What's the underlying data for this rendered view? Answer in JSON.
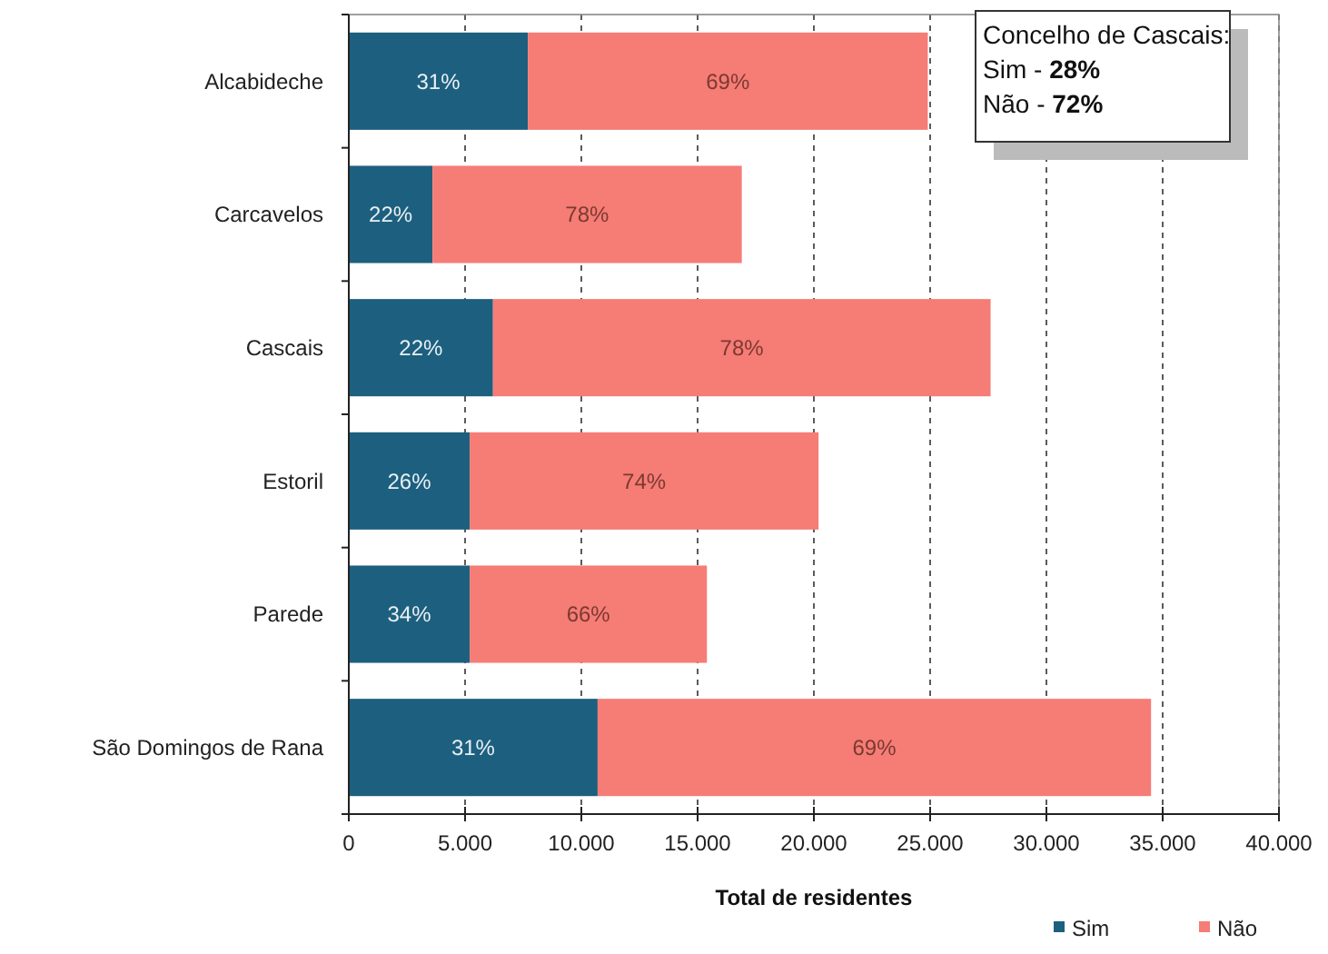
{
  "chart_data": {
    "type": "bar",
    "orientation": "horizontal",
    "stacked": true,
    "categories": [
      "Alcabideche",
      "Carcavelos",
      "Cascais",
      "Estoril",
      "Parede",
      "São Domingos de Rana"
    ],
    "series": [
      {
        "name": "Sim",
        "color": "#1d5f7e",
        "values": [
          7700,
          3600,
          6200,
          5200,
          5200,
          10700
        ]
      },
      {
        "name": "Não",
        "color": "#f67c76",
        "values": [
          17200,
          13300,
          21400,
          15000,
          10200,
          23800
        ]
      }
    ],
    "xlabel": "Total de residentes",
    "xlim": [
      0,
      40000
    ],
    "xticks": [
      0,
      {
        "value": 5000,
        "label": "5.000"
      },
      {
        "value": 10000,
        "label": "10.000"
      },
      {
        "value": 15000,
        "label": "15.000"
      },
      {
        "value": 20000,
        "label": "20.000"
      },
      {
        "value": 25000,
        "label": "25.000"
      },
      {
        "value": 30000,
        "label": "30.000"
      },
      {
        "value": 35000,
        "label": "35.000"
      },
      {
        "value": 40000,
        "label": "40.000"
      }
    ],
    "grid": "x",
    "legend": "bottom right",
    "annotations": [
      "Concelho de Cascais:",
      "Sim - 28%",
      "Não - 72%",
      {
        "text": "31%",
        "x": 3850,
        "y": "Alcabideche"
      },
      {
        "text": "69%",
        "x": 16300,
        "y": "Alcabideche"
      },
      {
        "text": "22%",
        "x": 1800,
        "y": "Carcavelos"
      },
      {
        "text": "78%",
        "x": 10250,
        "y": "Carcavelos"
      },
      {
        "text": "22%",
        "x": 3100,
        "y": "Cascais"
      },
      {
        "text": "78%",
        "x": 16900,
        "y": "Cascais"
      },
      {
        "text": "26%",
        "x": 2600,
        "y": "Estoril"
      },
      {
        "text": "74%",
        "x": 12700,
        "y": "Estoril"
      },
      {
        "text": "34%",
        "x": 2600,
        "y": "Parede"
      },
      {
        "text": "66%",
        "x": 10300,
        "y": "Parede"
      },
      {
        "text": "31%",
        "x": 5350,
        "y": "São Domingos de Rana"
      },
      {
        "text": "69%",
        "x": 22600,
        "y": "São Domingos de Rana"
      }
    ]
  }
}
